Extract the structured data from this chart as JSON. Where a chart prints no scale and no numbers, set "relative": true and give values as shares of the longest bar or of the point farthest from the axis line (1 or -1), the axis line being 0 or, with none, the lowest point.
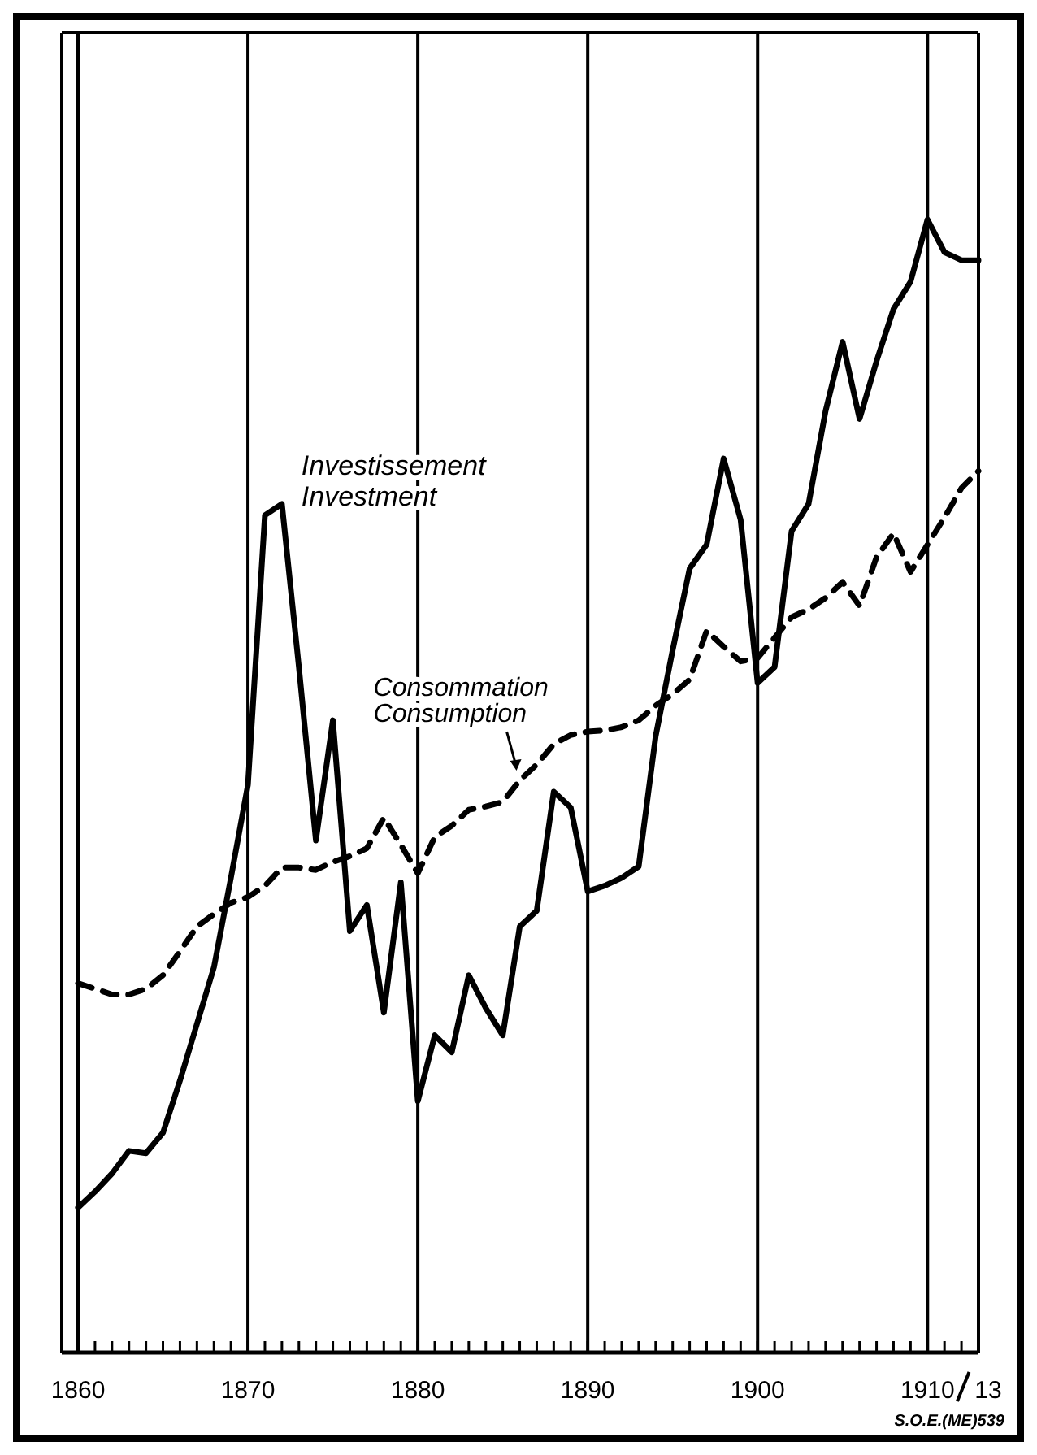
{
  "chart_data": {
    "type": "line",
    "relative": true,
    "marker": "none",
    "grid": "x",
    "x": [
      1860,
      1861,
      1862,
      1863,
      1864,
      1865,
      1866,
      1867,
      1868,
      1869,
      1870,
      1871,
      1872,
      1873,
      1874,
      1875,
      1876,
      1877,
      1878,
      1879,
      1880,
      1881,
      1882,
      1883,
      1884,
      1885,
      1886,
      1887,
      1888,
      1889,
      1890,
      1891,
      1892,
      1893,
      1894,
      1895,
      1896,
      1897,
      1898,
      1899,
      1900,
      1901,
      1902,
      1903,
      1904,
      1905,
      1906,
      1907,
      1908,
      1909,
      1910,
      1911,
      1912,
      1913
    ],
    "xlim": [
      1860,
      1913
    ],
    "xticks": [
      1860,
      {
        "value": 1861,
        "label": null
      },
      {
        "value": 1862,
        "label": null
      },
      {
        "value": 1863,
        "label": null
      },
      {
        "value": 1864,
        "label": null
      },
      {
        "value": 1865,
        "label": null
      },
      {
        "value": 1866,
        "label": null
      },
      {
        "value": 1867,
        "label": null
      },
      {
        "value": 1868,
        "label": null
      },
      {
        "value": 1869,
        "label": null
      },
      1870,
      {
        "value": 1871,
        "label": null
      },
      {
        "value": 1872,
        "label": null
      },
      {
        "value": 1873,
        "label": null
      },
      {
        "value": 1874,
        "label": null
      },
      {
        "value": 1875,
        "label": null
      },
      {
        "value": 1876,
        "label": null
      },
      {
        "value": 1877,
        "label": null
      },
      {
        "value": 1878,
        "label": null
      },
      {
        "value": 1879,
        "label": null
      },
      1880,
      {
        "value": 1881,
        "label": null
      },
      {
        "value": 1882,
        "label": null
      },
      {
        "value": 1883,
        "label": null
      },
      {
        "value": 1884,
        "label": null
      },
      {
        "value": 1885,
        "label": null
      },
      {
        "value": 1886,
        "label": null
      },
      {
        "value": 1887,
        "label": null
      },
      {
        "value": 1888,
        "label": null
      },
      {
        "value": 1889,
        "label": null
      },
      1890,
      {
        "value": 1891,
        "label": null
      },
      {
        "value": 1892,
        "label": null
      },
      {
        "value": 1893,
        "label": null
      },
      {
        "value": 1894,
        "label": null
      },
      {
        "value": 1895,
        "label": null
      },
      {
        "value": 1896,
        "label": null
      },
      {
        "value": 1897,
        "label": null
      },
      {
        "value": 1898,
        "label": null
      },
      {
        "value": 1899,
        "label": null
      },
      1900,
      {
        "value": 1901,
        "label": null
      },
      {
        "value": 1902,
        "label": null
      },
      {
        "value": 1903,
        "label": null
      },
      {
        "value": 1904,
        "label": null
      },
      {
        "value": 1905,
        "label": null
      },
      {
        "value": 1906,
        "label": null
      },
      {
        "value": 1907,
        "label": null
      },
      {
        "value": 1908,
        "label": null
      },
      {
        "value": 1909,
        "label": null
      },
      {
        "value": 1910,
        "label": "1910"
      },
      {
        "value": 1911,
        "label": null
      },
      {
        "value": 1912,
        "label": null
      },
      {
        "value": 1913,
        "label": "13"
      }
    ],
    "series": [
      {
        "name": "Investissement\nInvestment",
        "color": "#000000",
        "line_style": "solid",
        "values": [
          0.128,
          0.142,
          0.158,
          0.178,
          0.176,
          0.194,
          0.24,
          0.29,
          0.34,
          0.419,
          0.501,
          0.739,
          0.749,
          0.605,
          0.452,
          0.558,
          0.372,
          0.395,
          0.3,
          0.415,
          0.222,
          0.28,
          0.265,
          0.333,
          0.304,
          0.28,
          0.376,
          0.39,
          0.495,
          0.481,
          0.407,
          0.412,
          0.419,
          0.429,
          0.544,
          0.62,
          0.692,
          0.713,
          0.789,
          0.735,
          0.591,
          0.605,
          0.725,
          0.749,
          0.831,
          0.892,
          0.824,
          0.875,
          0.921,
          0.945,
          1,
          0.971,
          0.964,
          0.964
        ]
      },
      {
        "name": "Consommation\nConsumption",
        "color": "#000000",
        "line_style": "dashed",
        "values": [
          0.326,
          0.321,
          0.316,
          0.316,
          0.321,
          0.333,
          0.354,
          0.376,
          0.387,
          0.397,
          0.402,
          0.412,
          0.428,
          0.428,
          0.426,
          0.433,
          0.438,
          0.445,
          0.472,
          0.448,
          0.423,
          0.455,
          0.465,
          0.479,
          0.482,
          0.486,
          0.505,
          0.519,
          0.537,
          0.545,
          0.548,
          0.549,
          0.552,
          0.558,
          0.571,
          0.581,
          0.594,
          0.637,
          0.623,
          0.61,
          0.613,
          0.631,
          0.649,
          0.656,
          0.666,
          0.68,
          0.659,
          0.702,
          0.723,
          0.689,
          0.713,
          0.737,
          0.763,
          0.778
        ]
      }
    ],
    "annotations": [
      "S.O.E.(ME)539"
    ]
  }
}
